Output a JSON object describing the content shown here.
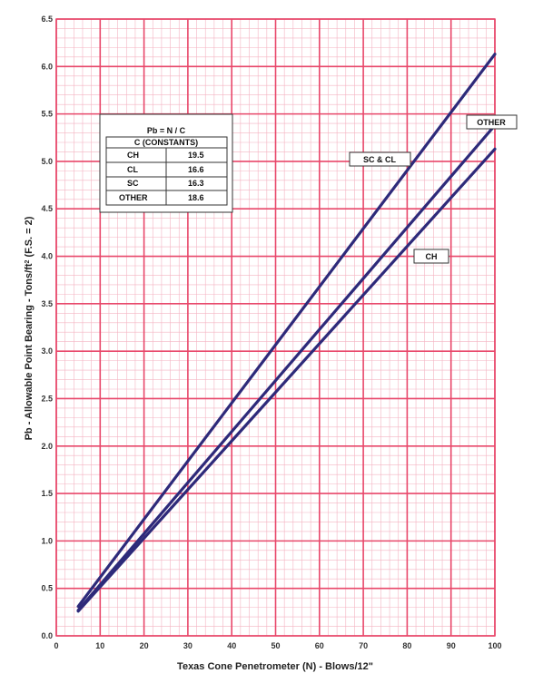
{
  "chart_data": {
    "type": "line",
    "xlabel": "Texas Cone Penetrometer (N) - Blows/12\"",
    "ylabel_main": "Pb - Allowable Point Bearing - Tons/ft",
    "ylabel_sup": "2",
    "ylabel_tail": " (F.S. = 2)",
    "xlim": [
      0,
      100
    ],
    "ylim": [
      0,
      6.5
    ],
    "x_ticks": [
      "0",
      "10",
      "20",
      "30",
      "40",
      "50",
      "60",
      "70",
      "80",
      "90",
      "100"
    ],
    "y_ticks": [
      "0.0",
      "0.5",
      "1.0",
      "1.5",
      "2.0",
      "2.5",
      "3.0",
      "3.5",
      "4.0",
      "4.5",
      "5.0",
      "5.5",
      "6.0",
      "6.5"
    ],
    "grid": true,
    "series": [
      {
        "name": "SC & CL",
        "x": [
          5,
          100
        ],
        "y": [
          0.31,
          6.13
        ]
      },
      {
        "name": "OTHER",
        "x": [
          5,
          100
        ],
        "y": [
          0.27,
          5.38
        ]
      },
      {
        "name": "CH",
        "x": [
          5,
          100
        ],
        "y": [
          0.26,
          5.13
        ]
      }
    ],
    "formula": "Pb = N / C",
    "table": {
      "header": "C (CONSTANTS)",
      "rows": [
        {
          "soil": "CH",
          "c": "19.5"
        },
        {
          "soil": "CL",
          "c": "16.6"
        },
        {
          "soil": "SC",
          "c": "16.3"
        },
        {
          "soil": "OTHER",
          "c": "18.6"
        }
      ]
    },
    "colors": {
      "grid_major": "#e8476a",
      "grid_minor": "#f4b3c2",
      "line": "#2e2a7a"
    }
  }
}
